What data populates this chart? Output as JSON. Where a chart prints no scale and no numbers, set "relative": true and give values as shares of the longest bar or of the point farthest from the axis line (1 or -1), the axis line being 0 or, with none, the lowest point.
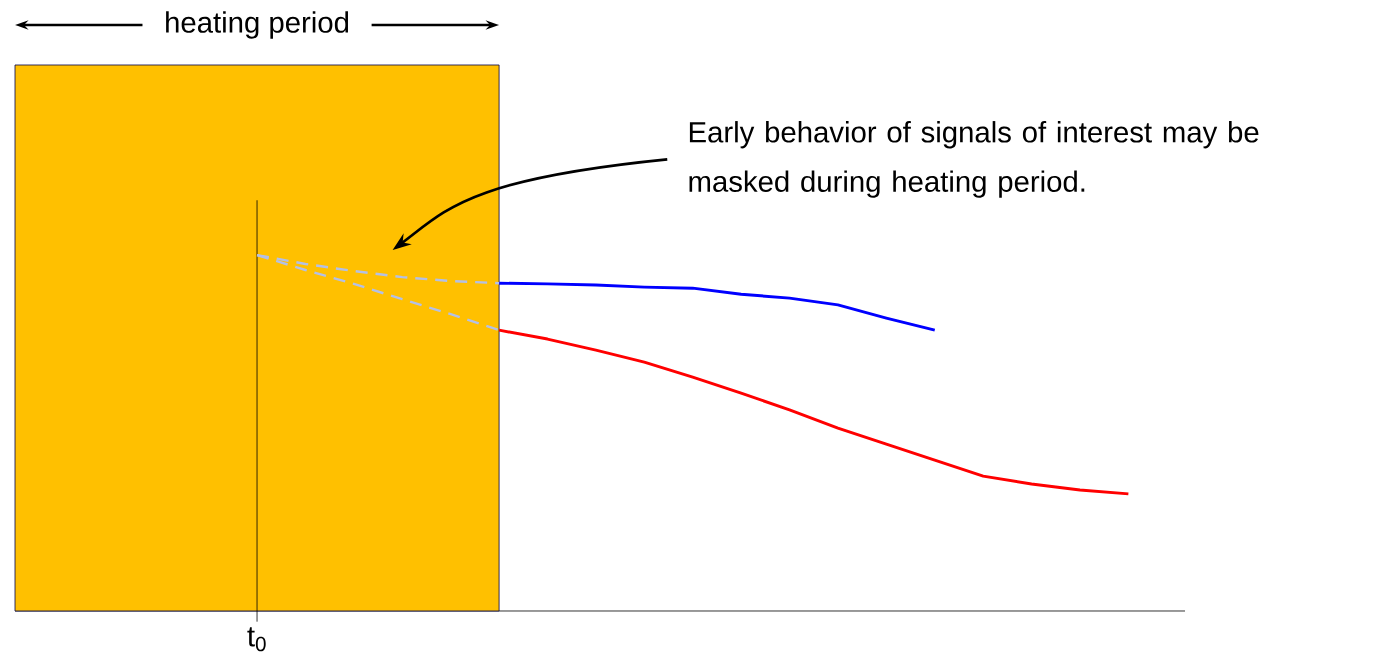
{
  "chart_data": {
    "type": "line",
    "relative": true,
    "categories": [
      null,
      null,
      null,
      null,
      null,
      null,
      null,
      null,
      null,
      null,
      null,
      null,
      null,
      null,
      null,
      null,
      null,
      null,
      null,
      null,
      null,
      null,
      null,
      null,
      null
    ],
    "series": [
      {
        "color": "#0000ff",
        "line_style": "solid",
        "values": [
          null,
          null,
          null,
          null,
          null,
          null,
          null,
          null,
          null,
          null,
          0.921,
          0.919,
          0.916,
          0.91,
          0.907,
          0.89,
          0.879,
          0.86,
          0.823,
          0.789,
          null,
          null,
          null,
          null,
          null
        ]
      },
      {
        "color": "#ff0000",
        "line_style": "solid",
        "values": [
          null,
          null,
          null,
          null,
          null,
          null,
          null,
          null,
          null,
          null,
          0.789,
          0.764,
          0.733,
          0.699,
          0.657,
          0.612,
          0.565,
          0.514,
          0.469,
          0.424,
          0.379,
          0.357,
          0.34,
          0.329,
          null
        ]
      },
      {
        "color": "#b4c0e6",
        "line_style": "dashed",
        "values": [
          null,
          null,
          null,
          null,
          null,
          1.0,
          0.975,
          0.955,
          0.938,
          0.927,
          0.921,
          null,
          null,
          null,
          null,
          null,
          null,
          null,
          null,
          null,
          null,
          null,
          null,
          null,
          null
        ]
      },
      {
        "color": "#b4c0e6",
        "line_style": "dashed",
        "values": [
          null,
          null,
          null,
          null,
          null,
          1.0,
          0.958,
          0.919,
          0.876,
          0.834,
          0.789,
          null,
          null,
          null,
          null,
          null,
          null,
          null,
          null,
          null,
          null,
          null,
          null,
          null,
          null
        ]
      }
    ],
    "annotations": [
      "t$_{0}$",
      "heating period",
      "Early behavior of signals of interest may be masked during heating period."
    ]
  }
}
